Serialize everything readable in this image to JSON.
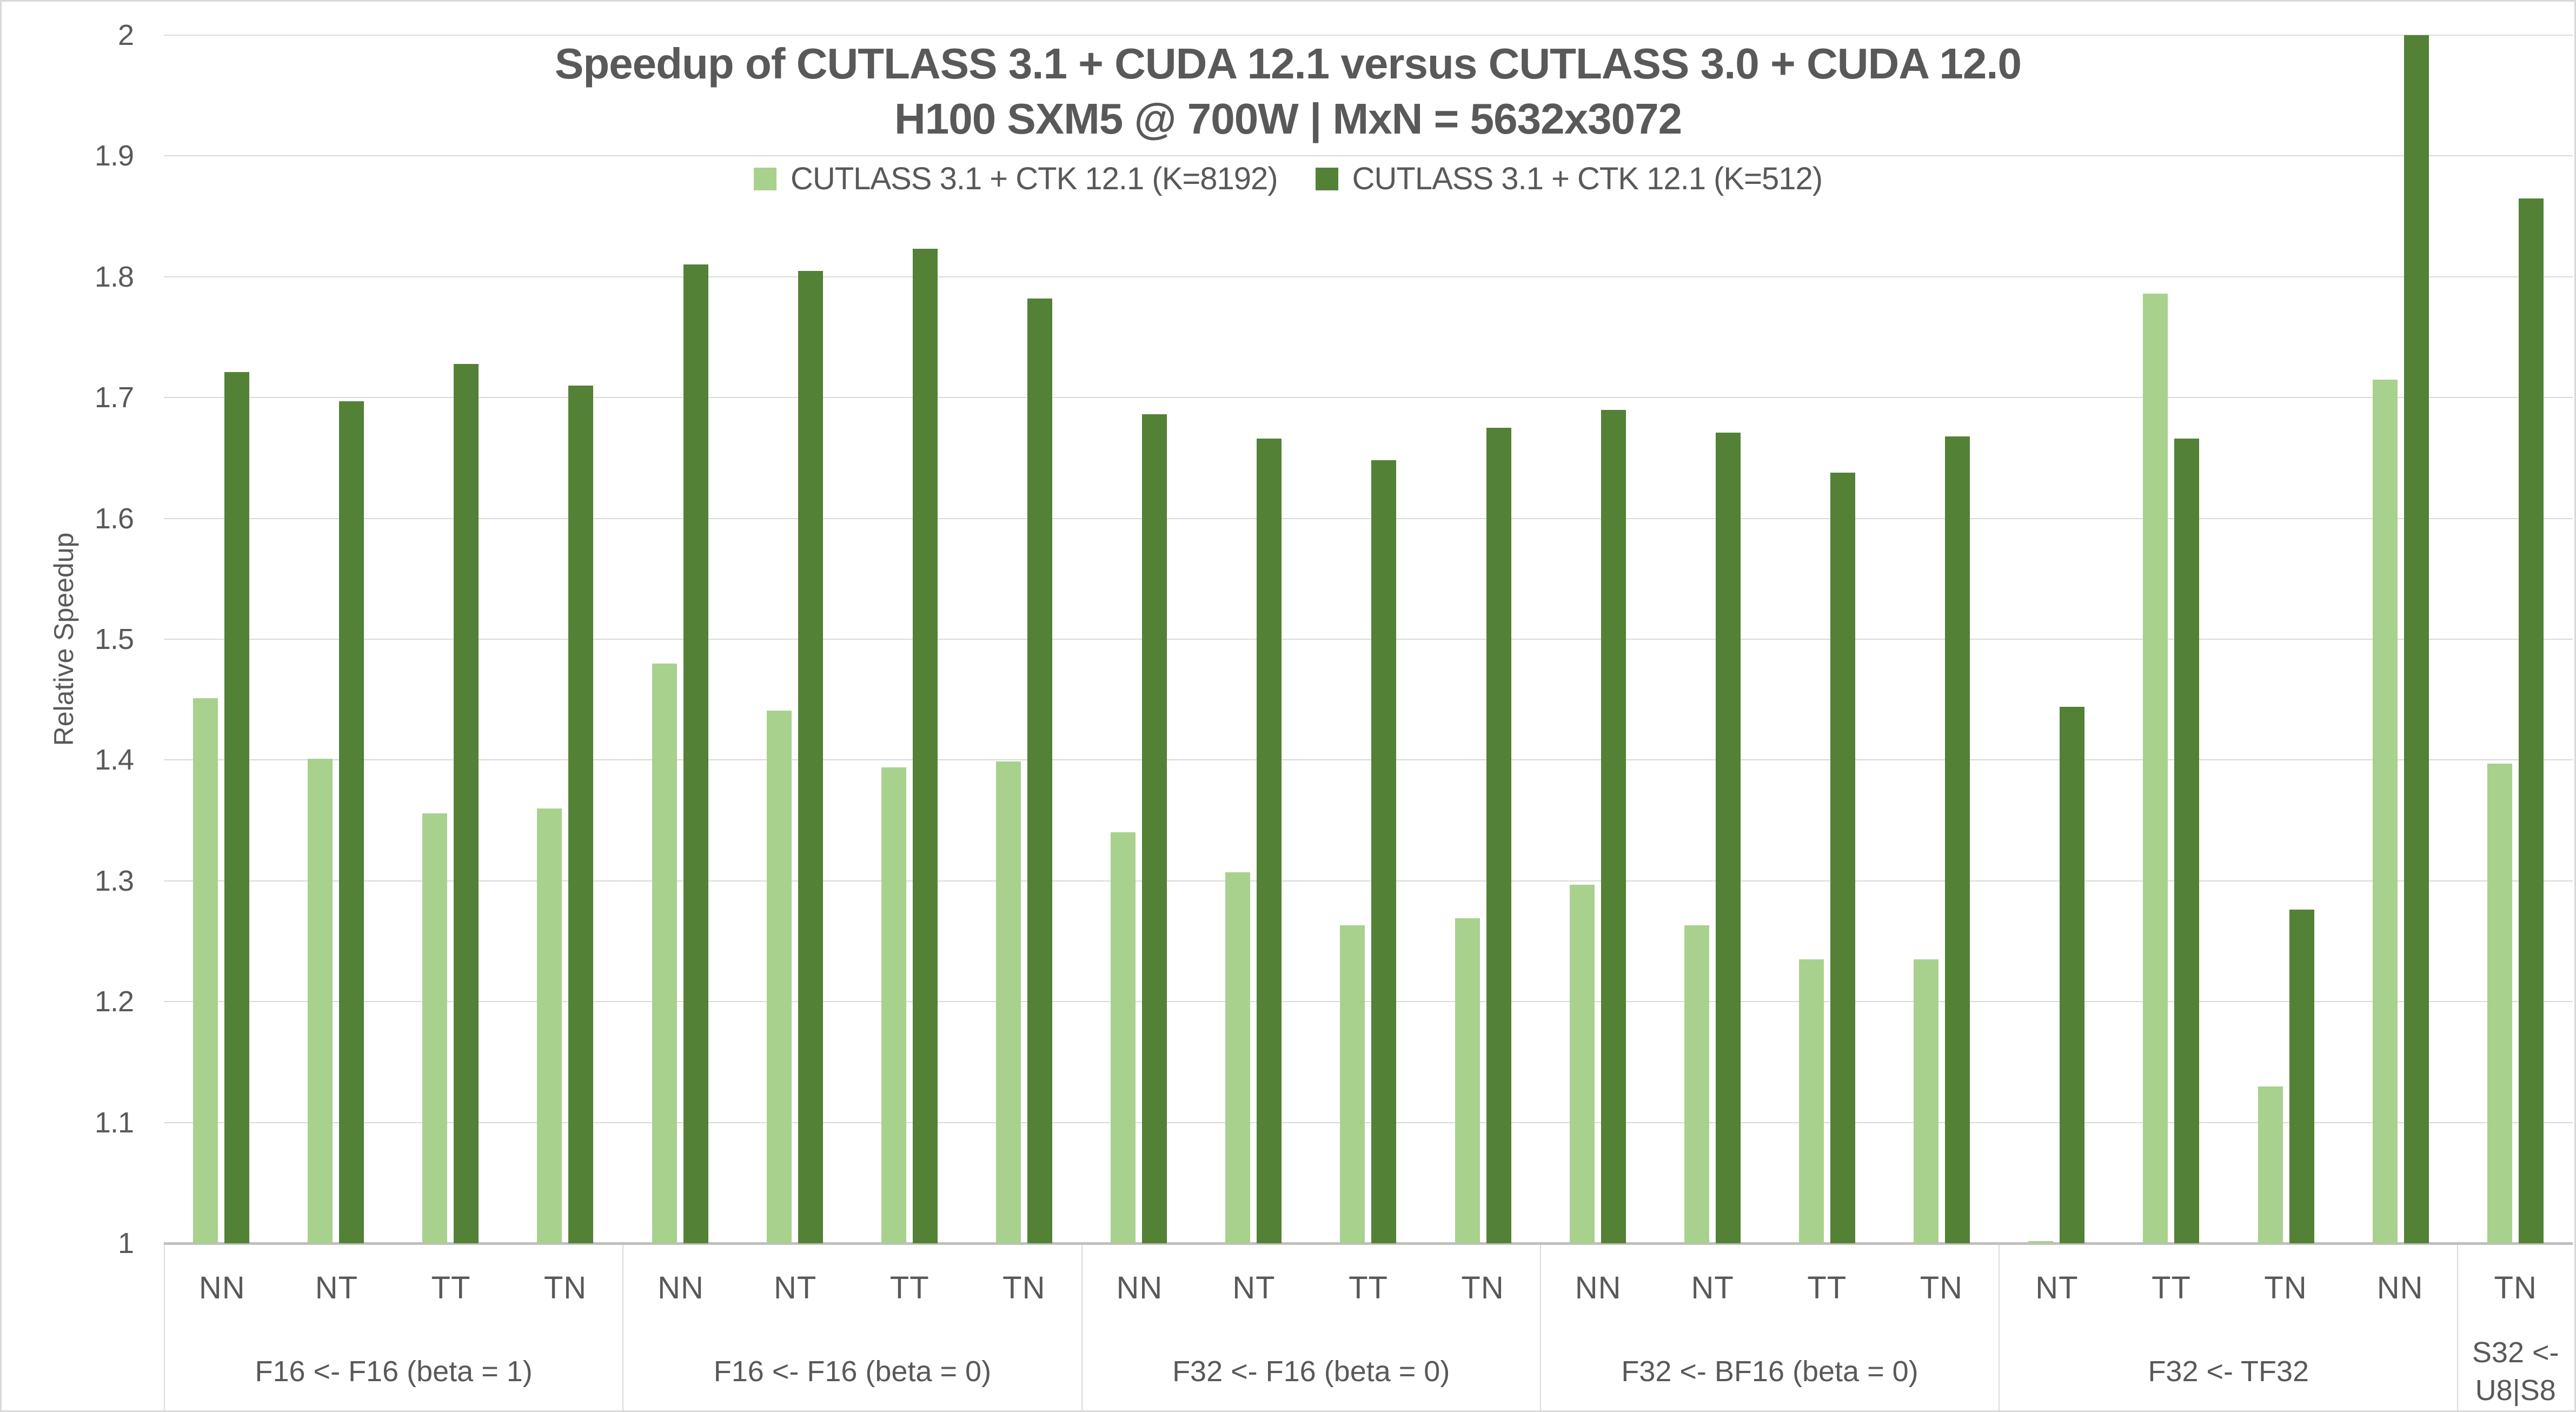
{
  "title": {
    "line1": "Speedup of CUTLASS 3.1 + CUDA 12.1 versus CUTLASS 3.0 + CUDA 12.0",
    "line2": "H100 SXM5 @ 700W | MxN = 5632x3072"
  },
  "legend": {
    "items": [
      {
        "label": "CUTLASS 3.1 + CTK 12.1 (K=8192)",
        "color": "#A9D18E"
      },
      {
        "label": "CUTLASS 3.1 + CTK 12.1 (K=512)",
        "color": "#538135"
      }
    ]
  },
  "y_axis": {
    "title": "Relative Speedup",
    "ticks": [
      {
        "label": "2",
        "value": 2.0
      },
      {
        "label": "1.9",
        "value": 1.9
      },
      {
        "label": "1.8",
        "value": 1.8
      },
      {
        "label": "1.7",
        "value": 1.7
      },
      {
        "label": "1.6",
        "value": 1.6
      },
      {
        "label": "1.5",
        "value": 1.5
      },
      {
        "label": "1.4",
        "value": 1.4
      },
      {
        "label": "1.3",
        "value": 1.3
      },
      {
        "label": "1.2",
        "value": 1.2
      },
      {
        "label": "1.1",
        "value": 1.1
      },
      {
        "label": "1",
        "value": 1.0
      }
    ]
  },
  "colors": {
    "series_light": "#A9D18E",
    "series_dark": "#538135",
    "gridline": "#D9D9D9",
    "axis_line": "#BFBFBF",
    "text": "#595959",
    "border": "#D9D9D9",
    "background": "#FFFFFF"
  },
  "chart_data": {
    "type": "bar",
    "title": "Speedup of CUTLASS 3.1 + CUDA 12.1 versus CUTLASS 3.0 + CUDA 12.0",
    "subtitle": "H100 SXM5 @ 700W | MxN = 5632x3072",
    "ylabel": "Relative Speedup",
    "ylim": [
      1,
      2
    ],
    "ytick_step": 0.1,
    "grid": true,
    "legend_position": "top",
    "categories": [
      "NN",
      "NT",
      "TT",
      "TN",
      "NN",
      "NT",
      "TT",
      "TN",
      "NN",
      "NT",
      "TT",
      "TN",
      "NN",
      "NT",
      "TT",
      "TN",
      "NT",
      "TT",
      "TN",
      "NN",
      "TN"
    ],
    "groups": [
      {
        "label": "F16 <- F16 (beta = 1)",
        "span": 4
      },
      {
        "label": "F16 <- F16 (beta = 0)",
        "span": 4
      },
      {
        "label": "F32 <- F16 (beta = 0)",
        "span": 4
      },
      {
        "label": "F32 <- BF16 (beta = 0)",
        "span": 4
      },
      {
        "label": "F32 <- TF32",
        "span": 4
      },
      {
        "label": "S32 <- U8|S8",
        "span": 1
      }
    ],
    "series": [
      {
        "name": "CUTLASS 3.1 + CTK 12.1 (K=8192)",
        "color": "#A9D18E",
        "values": [
          1.451,
          1.401,
          1.356,
          1.36,
          1.48,
          1.441,
          1.394,
          1.399,
          1.34,
          1.307,
          1.263,
          1.269,
          1.297,
          1.263,
          1.235,
          1.235,
          1.002,
          1.786,
          1.13,
          1.715,
          1.397
        ]
      },
      {
        "name": "CUTLASS 3.1 + CTK 12.1 (K=512)",
        "color": "#538135",
        "values": [
          1.721,
          1.697,
          1.728,
          1.71,
          1.81,
          1.805,
          1.823,
          1.782,
          1.686,
          1.666,
          1.648,
          1.675,
          1.69,
          1.671,
          1.638,
          1.668,
          1.444,
          1.666,
          1.276,
          2.0,
          1.865
        ]
      }
    ]
  }
}
